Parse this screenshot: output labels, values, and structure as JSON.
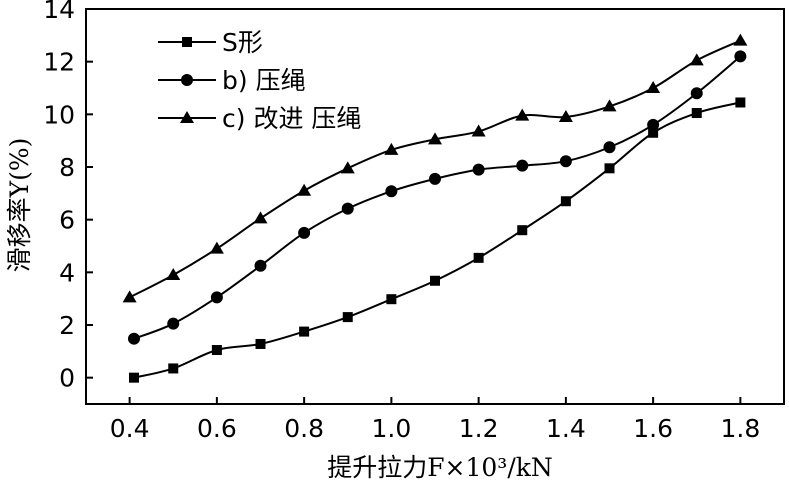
{
  "chart_data": {
    "type": "line",
    "xlabel": "提升拉力F×10³/kN",
    "ylabel": "滑移率Y(%)",
    "xlim": [
      0.3,
      1.9
    ],
    "ylim": [
      -1,
      14
    ],
    "xticks": [
      0.4,
      0.6,
      0.8,
      1.0,
      1.2,
      1.4,
      1.6,
      1.8
    ],
    "xtick_labels": [
      "0.4",
      "0.6",
      "0.8",
      "1.0",
      "1.2",
      "1.4",
      "1.6",
      "1.8"
    ],
    "yticks": [
      0,
      2,
      4,
      6,
      8,
      10,
      12,
      14
    ],
    "ytick_labels": [
      "0",
      "2",
      "4",
      "6",
      "8",
      "10",
      "12",
      "14"
    ],
    "legend_position": "top-left",
    "grid": false,
    "series": [
      {
        "name": "S形",
        "marker": "square",
        "x": [
          0.41,
          0.5,
          0.6,
          0.7,
          0.8,
          0.9,
          1.0,
          1.1,
          1.2,
          1.3,
          1.4,
          1.5,
          1.6,
          1.7,
          1.8
        ],
        "y": [
          0.0,
          0.35,
          1.05,
          1.28,
          1.75,
          2.3,
          2.98,
          3.68,
          4.55,
          5.6,
          6.7,
          7.95,
          9.3,
          10.05,
          10.45
        ]
      },
      {
        "name": "b) 压绳",
        "marker": "circle",
        "x": [
          0.41,
          0.5,
          0.6,
          0.7,
          0.8,
          0.9,
          1.0,
          1.1,
          1.2,
          1.3,
          1.4,
          1.5,
          1.6,
          1.7,
          1.8
        ],
        "y": [
          1.48,
          2.05,
          3.05,
          4.25,
          5.5,
          6.42,
          7.08,
          7.55,
          7.9,
          8.05,
          8.22,
          8.75,
          9.6,
          10.8,
          12.2
        ]
      },
      {
        "name": "c) 改进 压绳",
        "marker": "triangle",
        "x": [
          0.4,
          0.5,
          0.6,
          0.7,
          0.8,
          0.9,
          1.0,
          1.1,
          1.2,
          1.3,
          1.4,
          1.5,
          1.6,
          1.7,
          1.8
        ],
        "y": [
          3.05,
          3.9,
          4.9,
          6.05,
          7.1,
          7.95,
          8.65,
          9.05,
          9.35,
          9.95,
          9.9,
          10.3,
          11.0,
          12.05,
          12.8
        ]
      }
    ]
  }
}
